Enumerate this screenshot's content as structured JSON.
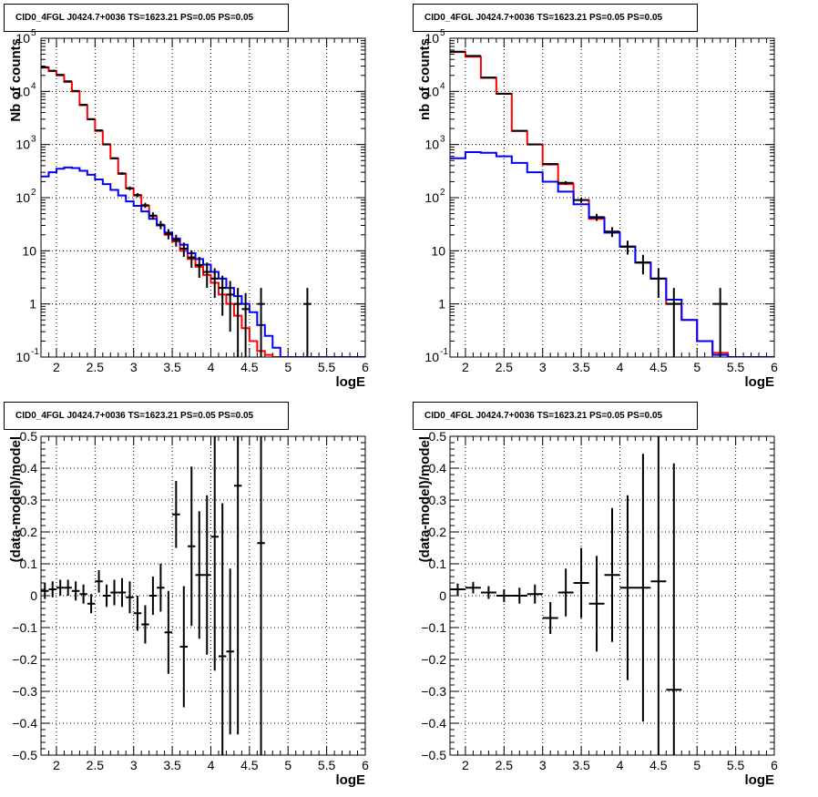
{
  "chart_data": [
    {
      "type": "line",
      "title": "CID0_4FGL J0424.7+0036 TS=1623.21 PS=0.05 PS=0.05",
      "xlabel": "logE",
      "ylabel": "Nb of counts",
      "yscale": "log",
      "xlim": [
        1.8,
        6
      ],
      "ylim": [
        0.1,
        100000
      ],
      "grid": true,
      "xticks": [
        "2",
        "2.5",
        "3",
        "3.5",
        "4",
        "4.5",
        "5",
        "5.5",
        "6"
      ],
      "series": [
        {
          "color": "#ff0000",
          "style": "step",
          "edges": [
            1.8,
            1.9,
            2.0,
            2.1,
            2.2,
            2.3,
            2.4,
            2.5,
            2.6,
            2.7,
            2.8,
            2.9,
            3.0,
            3.1,
            3.2,
            3.3,
            3.4,
            3.5,
            3.6,
            3.7,
            3.8,
            3.9,
            4.0,
            4.1,
            4.2,
            4.3,
            4.4,
            4.5,
            4.6,
            4.7,
            4.8,
            4.9,
            5.0,
            5.1,
            5.2,
            5.3,
            5.4,
            5.5,
            5.6,
            5.7,
            5.8,
            5.9,
            6.0
          ],
          "values": [
            28000,
            24000,
            20000,
            15000,
            10000,
            5500,
            3000,
            1800,
            1000,
            550,
            280,
            150,
            110,
            70,
            45,
            30,
            20,
            15,
            10,
            7,
            5,
            3.5,
            2.5,
            1.5,
            1,
            0.6,
            0.35,
            0.2,
            0.13,
            0.11,
            0.1,
            0.1,
            0.1,
            0.1,
            0.1,
            0.1,
            0.1,
            0.1,
            0.1,
            0.1,
            0.1,
            0.1
          ]
        },
        {
          "color": "#0000ff",
          "style": "step",
          "edges": [
            1.8,
            1.9,
            2.0,
            2.1,
            2.2,
            2.3,
            2.4,
            2.5,
            2.6,
            2.7,
            2.8,
            2.9,
            3.0,
            3.1,
            3.2,
            3.3,
            3.4,
            3.5,
            3.6,
            3.7,
            3.8,
            3.9,
            4.0,
            4.1,
            4.2,
            4.3,
            4.4,
            4.5,
            4.6,
            4.7,
            4.8,
            4.9,
            5.0,
            5.1,
            5.2,
            5.3,
            5.4,
            5.5,
            5.6,
            5.7,
            5.8,
            5.9,
            6.0
          ],
          "values": [
            250,
            300,
            350,
            370,
            360,
            320,
            270,
            220,
            180,
            140,
            110,
            85,
            70,
            55,
            40,
            30,
            22,
            17,
            13,
            9,
            7,
            5.5,
            4,
            3,
            2,
            1.4,
            1,
            0.7,
            0.4,
            0.25,
            0.15,
            0.1,
            0.1,
            0.1,
            0.1,
            0.1,
            0.1,
            0.1,
            0.1,
            0.1,
            0.1,
            0.1
          ]
        },
        {
          "color": "#000000",
          "style": "errorbars",
          "x": [
            1.85,
            1.95,
            2.05,
            2.15,
            2.25,
            2.35,
            2.45,
            2.55,
            2.65,
            2.75,
            2.85,
            2.95,
            3.05,
            3.15,
            3.25,
            3.35,
            3.45,
            3.55,
            3.65,
            3.75,
            3.85,
            3.95,
            4.05,
            4.15,
            4.25,
            4.35,
            4.45,
            4.65,
            5.25
          ],
          "y": [
            28500,
            24500,
            20500,
            15500,
            10200,
            5600,
            3000,
            1850,
            1010,
            550,
            285,
            150,
            112,
            72,
            46,
            31,
            21,
            16,
            11,
            7.5,
            5.4,
            4,
            3,
            2,
            1.5,
            1,
            0.8,
            1,
            1
          ],
          "yerr_lo": [
            170,
            160,
            140,
            120,
            100,
            75,
            55,
            43,
            32,
            23,
            17,
            12,
            10,
            8,
            7,
            5.5,
            4.6,
            4,
            3.3,
            2.7,
            2.3,
            2,
            1.7,
            1.4,
            1.2,
            1,
            0.8,
            0.95,
            0.95
          ],
          "yerr_hi": [
            170,
            160,
            140,
            120,
            100,
            75,
            55,
            43,
            32,
            23,
            17,
            12,
            10,
            8,
            7,
            5.5,
            4.6,
            4,
            3.3,
            2.7,
            2.3,
            2,
            1.7,
            1.4,
            1.2,
            1,
            0.8,
            1,
            1
          ],
          "xerr": 0.05
        }
      ]
    },
    {
      "type": "line",
      "title": "CID0_4FGL J0424.7+0036 TS=1623.21 PS=0.05 PS=0.05",
      "xlabel": "logE",
      "ylabel": "nb of counts",
      "yscale": "log",
      "xlim": [
        1.8,
        6
      ],
      "ylim": [
        0.1,
        100000
      ],
      "grid": true,
      "xticks": [
        "2",
        "2.5",
        "3",
        "3.5",
        "4",
        "4.5",
        "5",
        "5.5",
        "6"
      ],
      "series": [
        {
          "color": "#ff0000",
          "style": "step",
          "edges": [
            1.8,
            2.0,
            2.2,
            2.4,
            2.6,
            2.8,
            3.0,
            3.2,
            3.4,
            3.6,
            3.8,
            4.0,
            4.2,
            4.4,
            4.6,
            4.8,
            5.0,
            5.2,
            5.4,
            5.6,
            5.8,
            6.0
          ],
          "values": [
            55000,
            45000,
            18000,
            9000,
            1800,
            1000,
            420,
            180,
            90,
            40,
            22,
            12,
            6,
            3,
            1,
            0.5,
            0.2,
            0.12,
            0.1,
            0.1,
            0.1
          ],
          "valuesNote": ""
        },
        {
          "color": "#0000ff",
          "style": "step",
          "edges": [
            1.8,
            2.0,
            2.2,
            2.4,
            2.6,
            2.8,
            3.0,
            3.2,
            3.4,
            3.6,
            3.8,
            4.0,
            4.2,
            4.4,
            4.6,
            4.8,
            5.0,
            5.2,
            5.4,
            5.6,
            5.8,
            6.0
          ],
          "values": [
            550,
            720,
            700,
            600,
            450,
            300,
            200,
            130,
            75,
            42,
            22,
            12,
            6,
            3,
            1.2,
            0.5,
            0.2,
            0.11,
            0.1,
            0.1,
            0.1
          ]
        },
        {
          "color": "#000000",
          "style": "errorbars",
          "x": [
            1.9,
            2.1,
            2.3,
            2.5,
            2.7,
            2.9,
            3.1,
            3.3,
            3.5,
            3.7,
            3.9,
            4.1,
            4.3,
            4.5,
            4.7,
            5.3
          ],
          "y": [
            56000,
            46500,
            18200,
            9050,
            1810,
            1005,
            430,
            190,
            90,
            43,
            23,
            12,
            6,
            3,
            1,
            1
          ],
          "yerr_lo": [
            240,
            220,
            135,
            95,
            43,
            32,
            21,
            14,
            9.5,
            6.5,
            4.8,
            3.5,
            2.4,
            1.7,
            0.95,
            0.95
          ],
          "yerr_hi": [
            240,
            220,
            135,
            95,
            43,
            32,
            21,
            14,
            9.5,
            6.5,
            4.8,
            3.5,
            2.4,
            1.7,
            1,
            1
          ],
          "xerr": 0.1
        }
      ]
    },
    {
      "type": "scatter",
      "title": "CID0_4FGL J0424.7+0036 TS=1623.21 PS=0.05 PS=0.05",
      "xlabel": "logE",
      "ylabel": "(data-model)/model",
      "xlim": [
        1.8,
        6
      ],
      "ylim": [
        -0.5,
        0.5
      ],
      "grid": true,
      "xticks": [
        "2",
        "2.5",
        "3",
        "3.5",
        "4",
        "4.5",
        "5",
        "5.5",
        "6"
      ],
      "yticks": [
        "-0.5",
        "-0.4",
        "-0.3",
        "-0.2",
        "-0.1",
        "0",
        "0.1",
        "0.2",
        "0.3",
        "0.4",
        "0.5"
      ],
      "series": [
        {
          "color": "#000000",
          "style": "errorbars",
          "x": [
            1.85,
            1.95,
            2.05,
            2.15,
            2.25,
            2.35,
            2.45,
            2.55,
            2.65,
            2.75,
            2.85,
            2.95,
            3.05,
            3.15,
            3.25,
            3.35,
            3.45,
            3.55,
            3.65,
            3.75,
            3.85,
            3.95,
            4.05,
            4.15,
            4.25,
            4.35,
            4.65
          ],
          "y": [
            0.015,
            0.02,
            0.025,
            0.025,
            0.015,
            0.005,
            -0.025,
            0.045,
            0.0,
            0.01,
            0.01,
            -0.005,
            -0.055,
            -0.09,
            0.0,
            0.025,
            -0.115,
            0.255,
            -0.16,
            0.155,
            0.065,
            0.065,
            0.185,
            -0.19,
            -0.175,
            0.345,
            0.165
          ],
          "yerr": [
            0.025,
            0.025,
            0.025,
            0.025,
            0.03,
            0.03,
            0.03,
            0.035,
            0.035,
            0.04,
            0.045,
            0.05,
            0.055,
            0.06,
            0.06,
            0.075,
            0.13,
            0.105,
            0.19,
            0.25,
            0.2,
            0.25,
            0.42,
            0.48,
            0.26,
            0.78,
            1.0
          ],
          "xerr": 0.05
        }
      ]
    },
    {
      "type": "scatter",
      "title": "CID0_4FGL J0424.7+0036 TS=1623.21 PS=0.05 PS=0.05",
      "xlabel": "logE",
      "ylabel": "(data-model)/model",
      "xlim": [
        1.8,
        6
      ],
      "ylim": [
        -0.5,
        0.5
      ],
      "grid": true,
      "xticks": [
        "2",
        "2.5",
        "3",
        "3.5",
        "4",
        "4.5",
        "5",
        "5.5",
        "6"
      ],
      "yticks": [
        "-0.5",
        "-0.4",
        "-0.3",
        "-0.2",
        "-0.1",
        "0",
        "0.1",
        "0.2",
        "0.3",
        "0.4",
        "0.5"
      ],
      "series": [
        {
          "color": "#000000",
          "style": "errorbars",
          "x": [
            1.9,
            2.1,
            2.3,
            2.5,
            2.7,
            2.9,
            3.1,
            3.3,
            3.5,
            3.7,
            3.9,
            4.1,
            4.3,
            4.5,
            4.7
          ],
          "y": [
            0.02,
            0.025,
            0.01,
            0.0,
            0.0,
            0.005,
            -0.07,
            0.01,
            0.04,
            -0.025,
            0.065,
            0.025,
            0.025,
            0.045,
            -0.295
          ],
          "yerr": [
            0.018,
            0.018,
            0.02,
            0.02,
            0.025,
            0.03,
            0.05,
            0.075,
            0.11,
            0.15,
            0.21,
            0.29,
            0.42,
            0.55,
            0.71
          ],
          "xerr": 0.1
        }
      ]
    }
  ]
}
